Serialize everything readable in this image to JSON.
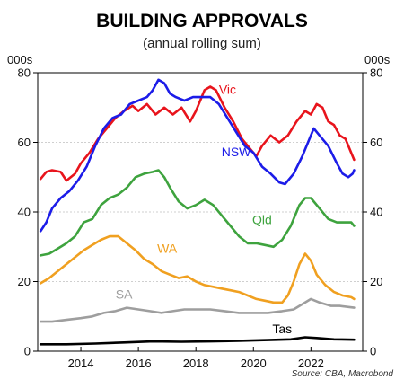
{
  "chart_data": {
    "type": "line",
    "title": "BUILDING APPROVALS",
    "subtitle": "(annual rolling sum)",
    "y_unit_left": "000s",
    "y_unit_right": "000s",
    "source": "Source: CBA, Macrobond",
    "xlim": [
      2012.5,
      2023.8
    ],
    "ylim": [
      0,
      80
    ],
    "x_ticks": [
      2014,
      2016,
      2018,
      2020,
      2022
    ],
    "y_ticks": [
      0,
      20,
      40,
      60,
      80
    ],
    "grid": true,
    "series": [
      {
        "name": "Vic",
        "color": "#e8141c",
        "label_x": 2019.1,
        "label_y": 74,
        "points": [
          [
            2012.6,
            49.5
          ],
          [
            2012.8,
            51.5
          ],
          [
            2013.0,
            52
          ],
          [
            2013.3,
            51.5
          ],
          [
            2013.5,
            49
          ],
          [
            2013.8,
            51
          ],
          [
            2014.0,
            54
          ],
          [
            2014.3,
            57
          ],
          [
            2014.6,
            61
          ],
          [
            2014.9,
            64
          ],
          [
            2015.2,
            67
          ],
          [
            2015.5,
            69
          ],
          [
            2015.8,
            70.5
          ],
          [
            2016.0,
            69
          ],
          [
            2016.3,
            71
          ],
          [
            2016.6,
            68
          ],
          [
            2016.9,
            70
          ],
          [
            2017.2,
            68
          ],
          [
            2017.5,
            70
          ],
          [
            2017.8,
            66
          ],
          [
            2018.0,
            69
          ],
          [
            2018.3,
            75
          ],
          [
            2018.5,
            76
          ],
          [
            2018.7,
            75
          ],
          [
            2019.0,
            70
          ],
          [
            2019.3,
            66
          ],
          [
            2019.6,
            61
          ],
          [
            2019.9,
            58
          ],
          [
            2020.1,
            56
          ],
          [
            2020.3,
            59
          ],
          [
            2020.6,
            62
          ],
          [
            2020.9,
            60
          ],
          [
            2021.2,
            62
          ],
          [
            2021.5,
            66
          ],
          [
            2021.8,
            69
          ],
          [
            2022.0,
            68
          ],
          [
            2022.2,
            71
          ],
          [
            2022.4,
            70
          ],
          [
            2022.6,
            66
          ],
          [
            2022.8,
            65
          ],
          [
            2023.0,
            62
          ],
          [
            2023.2,
            61
          ],
          [
            2023.35,
            58
          ],
          [
            2023.5,
            55
          ]
        ]
      },
      {
        "name": "NSW",
        "color": "#1c1ce8",
        "label_x": 2019.4,
        "label_y": 56,
        "points": [
          [
            2012.6,
            34.5
          ],
          [
            2012.8,
            37
          ],
          [
            2013.0,
            41
          ],
          [
            2013.3,
            44
          ],
          [
            2013.6,
            46
          ],
          [
            2013.9,
            49
          ],
          [
            2014.2,
            53
          ],
          [
            2014.5,
            59
          ],
          [
            2014.8,
            64
          ],
          [
            2015.1,
            67
          ],
          [
            2015.4,
            68
          ],
          [
            2015.7,
            71
          ],
          [
            2016.0,
            72
          ],
          [
            2016.3,
            73
          ],
          [
            2016.5,
            75
          ],
          [
            2016.7,
            78
          ],
          [
            2016.9,
            77
          ],
          [
            2017.1,
            74
          ],
          [
            2017.3,
            73
          ],
          [
            2017.6,
            72
          ],
          [
            2017.9,
            73
          ],
          [
            2018.2,
            73
          ],
          [
            2018.5,
            73
          ],
          [
            2018.8,
            71
          ],
          [
            2019.1,
            67
          ],
          [
            2019.4,
            63
          ],
          [
            2019.7,
            59
          ],
          [
            2020.0,
            57
          ],
          [
            2020.3,
            53
          ],
          [
            2020.6,
            51
          ],
          [
            2020.9,
            48.5
          ],
          [
            2021.1,
            48
          ],
          [
            2021.4,
            51
          ],
          [
            2021.7,
            56
          ],
          [
            2022.0,
            62
          ],
          [
            2022.1,
            64
          ],
          [
            2022.3,
            62
          ],
          [
            2022.6,
            59
          ],
          [
            2022.9,
            54
          ],
          [
            2023.1,
            51
          ],
          [
            2023.3,
            50
          ],
          [
            2023.45,
            51
          ],
          [
            2023.5,
            52
          ]
        ]
      },
      {
        "name": "Qld",
        "color": "#3ea33e",
        "label_x": 2020.3,
        "label_y": 36.5,
        "points": [
          [
            2012.6,
            27.5
          ],
          [
            2012.9,
            28
          ],
          [
            2013.2,
            29.5
          ],
          [
            2013.5,
            31
          ],
          [
            2013.8,
            33
          ],
          [
            2014.1,
            37
          ],
          [
            2014.4,
            38
          ],
          [
            2014.7,
            42
          ],
          [
            2015.0,
            44
          ],
          [
            2015.3,
            45
          ],
          [
            2015.6,
            47
          ],
          [
            2015.9,
            50
          ],
          [
            2016.2,
            51
          ],
          [
            2016.5,
            51.5
          ],
          [
            2016.7,
            52
          ],
          [
            2016.9,
            50
          ],
          [
            2017.1,
            47
          ],
          [
            2017.4,
            43
          ],
          [
            2017.7,
            41
          ],
          [
            2018.0,
            42
          ],
          [
            2018.3,
            43.5
          ],
          [
            2018.6,
            42
          ],
          [
            2018.9,
            39
          ],
          [
            2019.2,
            36
          ],
          [
            2019.5,
            33
          ],
          [
            2019.8,
            31
          ],
          [
            2020.1,
            31
          ],
          [
            2020.4,
            30.5
          ],
          [
            2020.7,
            30
          ],
          [
            2021.0,
            32
          ],
          [
            2021.3,
            36
          ],
          [
            2021.6,
            42
          ],
          [
            2021.8,
            44
          ],
          [
            2022.0,
            44
          ],
          [
            2022.3,
            41
          ],
          [
            2022.6,
            38
          ],
          [
            2022.9,
            37
          ],
          [
            2023.2,
            37
          ],
          [
            2023.4,
            37
          ],
          [
            2023.5,
            36
          ]
        ]
      },
      {
        "name": "WA",
        "color": "#f0a020",
        "label_x": 2017.0,
        "label_y": 28.2,
        "points": [
          [
            2012.6,
            19.5
          ],
          [
            2012.9,
            21
          ],
          [
            2013.2,
            23
          ],
          [
            2013.5,
            25
          ],
          [
            2013.8,
            27
          ],
          [
            2014.1,
            29
          ],
          [
            2014.4,
            30.5
          ],
          [
            2014.7,
            32
          ],
          [
            2015.0,
            33
          ],
          [
            2015.3,
            33
          ],
          [
            2015.6,
            31
          ],
          [
            2015.9,
            29
          ],
          [
            2016.2,
            26.5
          ],
          [
            2016.5,
            25
          ],
          [
            2016.8,
            23
          ],
          [
            2017.1,
            22
          ],
          [
            2017.4,
            21
          ],
          [
            2017.7,
            21.5
          ],
          [
            2018.0,
            20
          ],
          [
            2018.3,
            19
          ],
          [
            2018.6,
            18.5
          ],
          [
            2018.9,
            18
          ],
          [
            2019.2,
            17.5
          ],
          [
            2019.5,
            17
          ],
          [
            2019.8,
            16
          ],
          [
            2020.1,
            15
          ],
          [
            2020.4,
            14.5
          ],
          [
            2020.7,
            14
          ],
          [
            2021.0,
            14
          ],
          [
            2021.2,
            16
          ],
          [
            2021.4,
            20
          ],
          [
            2021.6,
            25
          ],
          [
            2021.8,
            28
          ],
          [
            2022.0,
            26
          ],
          [
            2022.2,
            22
          ],
          [
            2022.5,
            19
          ],
          [
            2022.8,
            17
          ],
          [
            2023.1,
            16
          ],
          [
            2023.4,
            15.5
          ],
          [
            2023.5,
            15
          ]
        ]
      },
      {
        "name": "SA",
        "color": "#9e9e9e",
        "label_x": 2015.5,
        "label_y": 15.1,
        "points": [
          [
            2012.6,
            8.5
          ],
          [
            2013.0,
            8.5
          ],
          [
            2013.5,
            9
          ],
          [
            2014.0,
            9.5
          ],
          [
            2014.4,
            10
          ],
          [
            2014.8,
            11
          ],
          [
            2015.2,
            11.5
          ],
          [
            2015.6,
            12.5
          ],
          [
            2016.0,
            12
          ],
          [
            2016.4,
            11.5
          ],
          [
            2016.8,
            11
          ],
          [
            2017.2,
            11.5
          ],
          [
            2017.6,
            12
          ],
          [
            2018.0,
            12
          ],
          [
            2018.5,
            12
          ],
          [
            2019.0,
            11.5
          ],
          [
            2019.5,
            11
          ],
          [
            2020.0,
            11
          ],
          [
            2020.5,
            11
          ],
          [
            2021.0,
            11.5
          ],
          [
            2021.4,
            12
          ],
          [
            2021.8,
            14
          ],
          [
            2022.0,
            15
          ],
          [
            2022.3,
            14
          ],
          [
            2022.7,
            13
          ],
          [
            2023.0,
            13
          ],
          [
            2023.5,
            12.5
          ]
        ]
      },
      {
        "name": "Tas",
        "color": "#000000",
        "label_x": 2021.0,
        "label_y": 5.1,
        "points": [
          [
            2012.6,
            2
          ],
          [
            2013.5,
            2
          ],
          [
            2014.5,
            2.2
          ],
          [
            2015.5,
            2.5
          ],
          [
            2016.5,
            2.8
          ],
          [
            2017.5,
            2.7
          ],
          [
            2018.5,
            2.8
          ],
          [
            2019.5,
            3
          ],
          [
            2020.5,
            3.2
          ],
          [
            2021.3,
            3.4
          ],
          [
            2021.8,
            4
          ],
          [
            2022.2,
            3.8
          ],
          [
            2022.8,
            3.4
          ],
          [
            2023.5,
            3.3
          ]
        ]
      }
    ]
  }
}
